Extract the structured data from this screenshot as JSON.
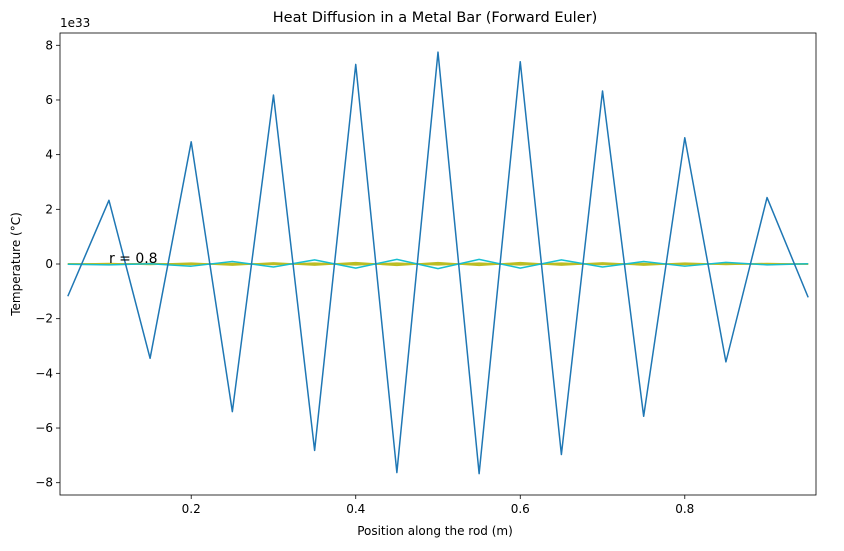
{
  "chart_data": {
    "type": "line",
    "title": "Heat Diffusion in a Metal Bar (Forward Euler)",
    "xlabel": "Position along the rod (m)",
    "ylabel": "Temperature (°C)",
    "y_offset_label": "1e33",
    "xlim": [
      0.0405,
      0.9595
    ],
    "ylim": [
      -8.45,
      8.45
    ],
    "y_scale_factor": 1e+33,
    "grid": false,
    "xticks": [
      {
        "value": 0.2,
        "label": "0.2"
      },
      {
        "value": 0.4,
        "label": "0.4"
      },
      {
        "value": 0.6,
        "label": "0.6"
      },
      {
        "value": 0.8,
        "label": "0.8"
      }
    ],
    "yticks": [
      {
        "value": -8,
        "label": "−8"
      },
      {
        "value": -6,
        "label": "−6"
      },
      {
        "value": -4,
        "label": "−4"
      },
      {
        "value": -2,
        "label": "−2"
      },
      {
        "value": 0,
        "label": "0"
      },
      {
        "value": 2,
        "label": "2"
      },
      {
        "value": 4,
        "label": "4"
      },
      {
        "value": 6,
        "label": "6"
      },
      {
        "value": 8,
        "label": "8"
      }
    ],
    "annotation": {
      "text": "r = 0.8",
      "x": 0.1,
      "y": 0.0
    },
    "x": [
      0.05,
      0.1,
      0.15,
      0.2,
      0.25,
      0.3,
      0.35,
      0.4,
      0.45,
      0.5,
      0.55,
      0.6,
      0.65,
      0.7,
      0.75,
      0.8,
      0.85,
      0.9,
      0.95
    ],
    "series": [
      {
        "color": "#bcbd22",
        "values": [
          0,
          0,
          0,
          0,
          0,
          0,
          0,
          0,
          0,
          0,
          0,
          0,
          0,
          0,
          0,
          0,
          0,
          0,
          0
        ]
      },
      {
        "color": "#bcbd22",
        "values": [
          0.01,
          -0.01,
          0.02,
          -0.02,
          0.02,
          -0.02,
          0.03,
          -0.03,
          0.03,
          -0.03,
          0.03,
          -0.03,
          0.03,
          -0.02,
          0.02,
          -0.02,
          0.02,
          -0.01,
          0.01
        ]
      },
      {
        "color": "#bcbd22",
        "values": [
          -0.01,
          0.02,
          -0.02,
          0.03,
          -0.04,
          0.04,
          -0.04,
          0.05,
          -0.05,
          0.05,
          -0.05,
          0.05,
          -0.04,
          0.04,
          -0.04,
          0.03,
          -0.02,
          0.02,
          -0.01
        ]
      },
      {
        "color": "#17becf",
        "values": [
          -0.01,
          -0.03,
          0.01,
          -0.08,
          0.09,
          -0.11,
          0.15,
          -0.15,
          0.17,
          -0.17,
          0.17,
          -0.15,
          0.15,
          -0.11,
          0.09,
          -0.08,
          0.06,
          -0.03,
          0.01
        ]
      },
      {
        "color": "#1f77b4",
        "values": [
          -1.18,
          2.33,
          -3.45,
          4.47,
          -5.4,
          6.18,
          -6.82,
          7.3,
          -7.63,
          7.75,
          -7.67,
          7.4,
          -6.97,
          6.33,
          -5.57,
          4.62,
          -3.58,
          2.43,
          -1.22
        ]
      }
    ]
  }
}
